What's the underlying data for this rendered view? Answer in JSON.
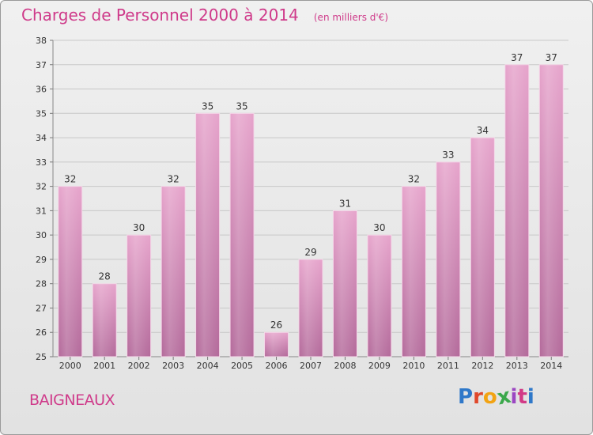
{
  "header": {
    "title": "Charges de Personnel 2000 à 2014",
    "subtitle": "(en milliers d'€)"
  },
  "footer": {
    "commune": "BAIGNEAUX",
    "logo": "Proxiti",
    "logo_colors": [
      "#2f78c9",
      "#e0482b",
      "#f2a313",
      "#3aa84b",
      "#9b47c2",
      "#d23a86",
      "#2f78c9"
    ]
  },
  "colors": {
    "bar": "#d884b6",
    "bar_dark": "#b06a94",
    "accent": "#cf3a8a"
  },
  "chart_data": {
    "type": "bar",
    "categories": [
      "2000",
      "2001",
      "2002",
      "2003",
      "2004",
      "2005",
      "2006",
      "2007",
      "2008",
      "2009",
      "2010",
      "2011",
      "2012",
      "2013",
      "2014"
    ],
    "values": [
      32,
      28,
      30,
      32,
      35,
      35,
      26,
      29,
      31,
      30,
      32,
      33,
      34,
      37,
      37
    ],
    "title": "Charges de Personnel 2000 à 2014",
    "subtitle": "(en milliers d'€)",
    "ylim": [
      25,
      38
    ],
    "yticks": [
      25,
      26,
      27,
      28,
      29,
      30,
      31,
      32,
      33,
      34,
      35,
      36,
      37,
      38
    ],
    "grid": true,
    "data_labels": true
  }
}
